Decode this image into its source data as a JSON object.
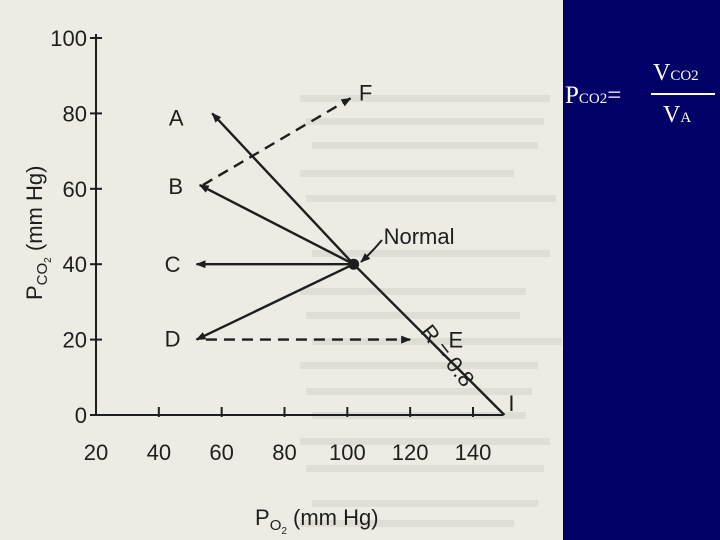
{
  "colors": {
    "background": "#000066",
    "paper": "#ecebe4",
    "ink": "#1e1e1e",
    "formula_text": "#ffffff"
  },
  "formula": {
    "lhs_main": "P",
    "lhs_sub": "CO2",
    "equals": "=",
    "num_main": "V",
    "num_sub": "CO2",
    "den_main": "V",
    "den_sub": "A"
  },
  "chart_data": {
    "type": "line",
    "xlabel_main": "P",
    "xlabel_sub": "O",
    "xlabel_sub2": "2",
    "xlabel_rest": " (mm Hg)",
    "ylabel_main": "P",
    "ylabel_sub": "CO",
    "ylabel_sub2": "2",
    "ylabel_rest": " (mm Hg)",
    "xlim": [
      20,
      150
    ],
    "ylim": [
      0,
      100
    ],
    "x_ticks": [
      20,
      40,
      60,
      80,
      100,
      120,
      140
    ],
    "y_ticks": [
      0,
      20,
      40,
      60,
      80,
      100
    ],
    "grid": false,
    "points": [
      {
        "label": "Normal",
        "x": 102,
        "y": 40
      },
      {
        "label": "A",
        "x": 57,
        "y": 80
      },
      {
        "label": "B",
        "x": 53,
        "y": 61
      },
      {
        "label": "C",
        "x": 52,
        "y": 40
      },
      {
        "label": "D",
        "x": 52,
        "y": 20
      },
      {
        "label": "E",
        "x": 125,
        "y": 20
      },
      {
        "label": "F",
        "x": 102,
        "y": 84
      },
      {
        "label": "I",
        "x": 150,
        "y": 0
      }
    ],
    "segments": [
      {
        "name": "normal-to-I",
        "from": [
          102,
          40
        ],
        "to": [
          150,
          0
        ],
        "style": "solid",
        "arrow": false
      },
      {
        "name": "normal-to-A",
        "from": [
          102,
          40
        ],
        "to": [
          57,
          80
        ],
        "style": "solid",
        "arrow": true
      },
      {
        "name": "normal-to-B",
        "from": [
          102,
          40
        ],
        "to": [
          53,
          61
        ],
        "style": "solid",
        "arrow": true
      },
      {
        "name": "normal-to-C",
        "from": [
          102,
          40
        ],
        "to": [
          52,
          40
        ],
        "style": "solid",
        "arrow": true
      },
      {
        "name": "normal-to-D",
        "from": [
          102,
          40
        ],
        "to": [
          52,
          20
        ],
        "style": "solid",
        "arrow": true
      },
      {
        "name": "D-to-E",
        "from": [
          55,
          20
        ],
        "to": [
          120,
          20
        ],
        "style": "dashed",
        "arrow": true
      },
      {
        "name": "B-to-F",
        "from": [
          54,
          61
        ],
        "to": [
          101,
          84
        ],
        "style": "dashed",
        "arrow": true
      }
    ],
    "annotations": [
      {
        "text": "R = 0.8",
        "x": 123,
        "y": 22
      }
    ]
  }
}
